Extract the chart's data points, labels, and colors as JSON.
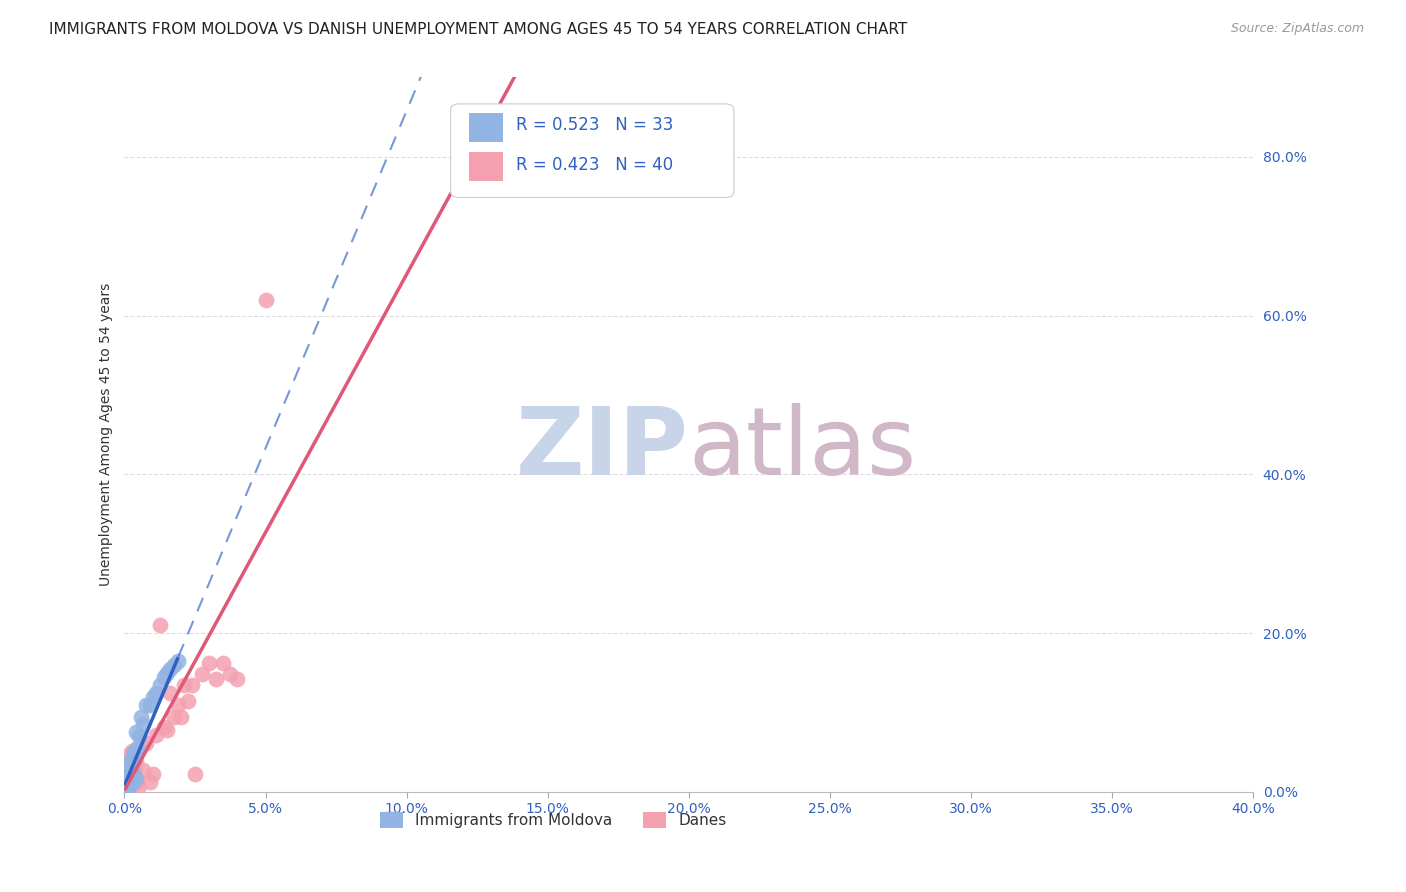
{
  "title": "IMMIGRANTS FROM MOLDOVA VS DANISH UNEMPLOYMENT AMONG AGES 45 TO 54 YEARS CORRELATION CHART",
  "source": "Source: ZipAtlas.com",
  "ylabel": "Unemployment Among Ages 45 to 54 years",
  "xlim": [
    0.0,
    0.4
  ],
  "ylim": [
    0.0,
    0.9
  ],
  "xticks": [
    0.0,
    0.05,
    0.1,
    0.15,
    0.2,
    0.25,
    0.3,
    0.35,
    0.4
  ],
  "yticks_right": [
    0.0,
    0.2,
    0.4,
    0.6,
    0.8
  ],
  "moldova_x": [
    0.0005,
    0.001,
    0.0008,
    0.0015,
    0.001,
    0.002,
    0.0012,
    0.001,
    0.0025,
    0.003,
    0.0035,
    0.004,
    0.0025,
    0.002,
    0.003,
    0.0015,
    0.0045,
    0.005,
    0.004,
    0.0035,
    0.006,
    0.0075,
    0.0065,
    0.01,
    0.0125,
    0.009,
    0.011,
    0.015,
    0.014,
    0.0175,
    0.016,
    0.019,
    0.001
  ],
  "moldova_y": [
    0.02,
    0.025,
    0.012,
    0.022,
    0.035,
    0.008,
    0.018,
    0.03,
    0.028,
    0.012,
    0.04,
    0.018,
    0.022,
    0.028,
    0.045,
    0.035,
    0.055,
    0.07,
    0.075,
    0.05,
    0.095,
    0.11,
    0.085,
    0.12,
    0.135,
    0.11,
    0.125,
    0.15,
    0.145,
    0.16,
    0.155,
    0.165,
    0.004
  ],
  "danes_x": [
    0.0005,
    0.001,
    0.0015,
    0.0005,
    0.002,
    0.001,
    0.0025,
    0.0015,
    0.003,
    0.002,
    0.0035,
    0.0025,
    0.004,
    0.003,
    0.0045,
    0.005,
    0.006,
    0.0075,
    0.0065,
    0.009,
    0.01,
    0.011,
    0.0125,
    0.014,
    0.015,
    0.016,
    0.0175,
    0.019,
    0.02,
    0.021,
    0.0225,
    0.024,
    0.025,
    0.0275,
    0.03,
    0.0325,
    0.035,
    0.0375,
    0.04,
    0.05
  ],
  "danes_y": [
    0.018,
    0.012,
    0.022,
    0.028,
    0.018,
    0.038,
    0.012,
    0.032,
    0.022,
    0.048,
    0.028,
    0.052,
    0.038,
    0.018,
    0.012,
    0.008,
    0.058,
    0.062,
    0.028,
    0.012,
    0.022,
    0.072,
    0.21,
    0.082,
    0.078,
    0.125,
    0.095,
    0.11,
    0.095,
    0.135,
    0.115,
    0.135,
    0.022,
    0.148,
    0.162,
    0.142,
    0.162,
    0.148,
    0.142,
    0.62
  ],
  "moldova_R": 0.523,
  "moldova_N": 33,
  "danes_R": 0.423,
  "danes_N": 40,
  "moldova_color": "#92B4E3",
  "danes_color": "#F4A0B0",
  "moldova_line_color": "#3060C0",
  "danes_line_color": "#E05878",
  "watermark_zip_color": "#C8D4E8",
  "watermark_atlas_color": "#D0B8C8",
  "background_color": "#FFFFFF",
  "title_fontsize": 11,
  "source_fontsize": 9,
  "axis_label_color": "#3060C0",
  "grid_color": "#DDDDDD",
  "moldova_line_intercept": 0.008,
  "moldova_line_slope": 8.5,
  "danes_line_intercept": 0.002,
  "danes_line_slope": 6.5
}
